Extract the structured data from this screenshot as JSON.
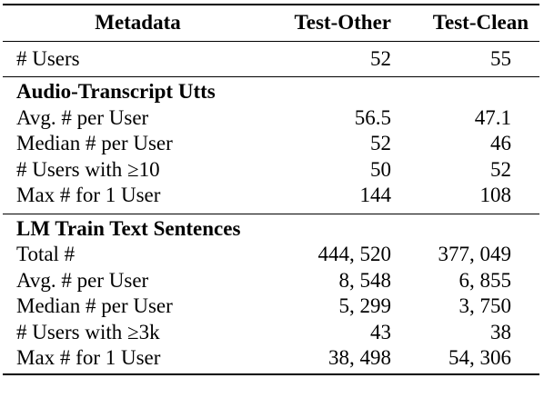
{
  "table": {
    "headers": {
      "metadata": "Metadata",
      "test_other": "Test-Other",
      "test_clean": "Test-Clean"
    },
    "users_row": {
      "label": "# Users",
      "test_other": "52",
      "test_clean": "55"
    },
    "audio_section": {
      "title": "Audio-Transcript Utts",
      "rows": [
        {
          "label": "Avg. # per User",
          "test_other": "56.5",
          "test_clean": "47.1"
        },
        {
          "label": "Median # per User",
          "test_other": "52",
          "test_clean": "46"
        },
        {
          "label": "# Users with ≥10",
          "test_other": "50",
          "test_clean": "52"
        },
        {
          "label": "Max # for 1 User",
          "test_other": "144",
          "test_clean": "108"
        }
      ]
    },
    "lm_section": {
      "title": "LM Train Text Sentences",
      "rows": [
        {
          "label": "Total #",
          "test_other": "444, 520",
          "test_clean": "377, 049"
        },
        {
          "label": "Avg. # per User",
          "test_other": "8, 548",
          "test_clean": "6, 855"
        },
        {
          "label": "Median # per User",
          "test_other": "5, 299",
          "test_clean": "3, 750"
        },
        {
          "label": "# Users with ≥3k",
          "test_other": "43",
          "test_clean": "38"
        },
        {
          "label": "Max # for 1 User",
          "test_other": "38, 498",
          "test_clean": "54, 306"
        }
      ]
    }
  }
}
